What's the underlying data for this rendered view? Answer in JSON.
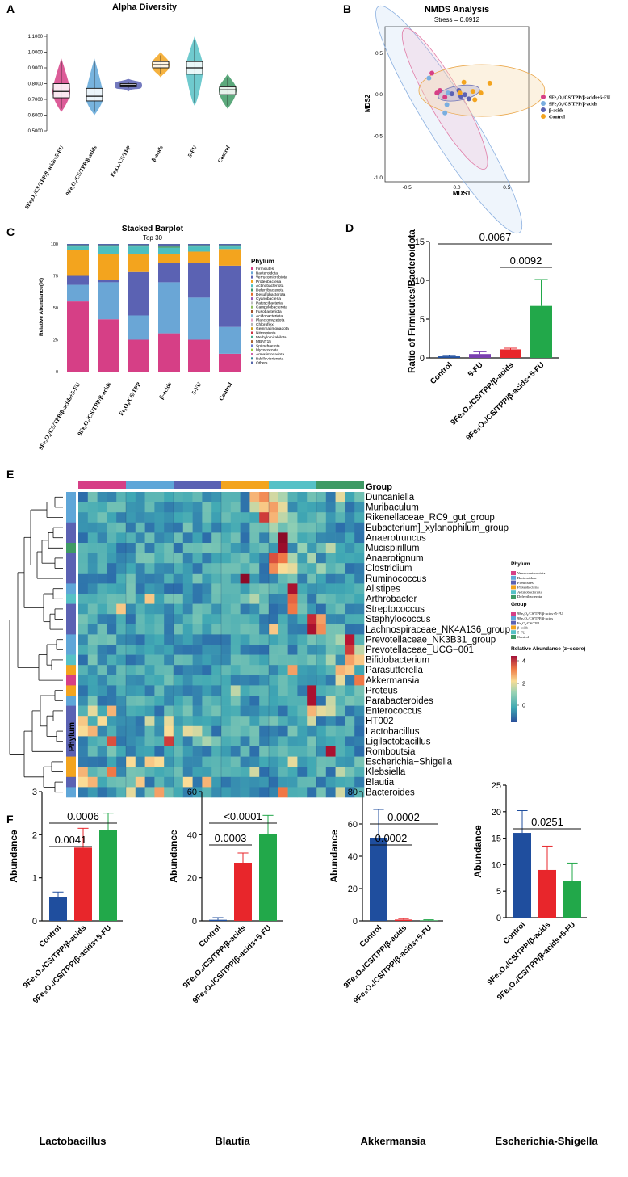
{
  "panels": {
    "A": "A",
    "B": "B",
    "C": "C",
    "D": "D",
    "E": "E",
    "F": "F"
  },
  "groups": [
    "9Fe3O4/CS/TPP/β-acids+5-FU",
    "9Fe3O4/CS/TPP/β-acids",
    "Fe3O4/CS/TPP",
    "β-acids",
    "5-FU",
    "Control"
  ],
  "colors": {
    "g1": "#d63f86",
    "g2": "#5fa6d8",
    "g3": "#5b62b3",
    "g4": "#f3a41e",
    "g5": "#56c1c6",
    "g6": "#3f9a65",
    "control_bar": "#1f4e9e",
    "red_bar": "#e8262b",
    "green_bar": "#22a84a"
  },
  "chart_data": [
    {
      "id": "A",
      "type": "violin",
      "title": "Alpha Diversity",
      "categories": [
        "9Fe₃O₄/CS/TPP/β-acids+5-FU",
        "9Fe₃O₄/CS/TPP/β-acids",
        "Fe₃O₄/CS/TPP",
        "β-acids",
        "5-FU",
        "Control"
      ],
      "yticks": [
        "0.5000",
        "0.6000",
        "0.7000",
        "0.8000",
        "0.9000",
        "1.0000",
        "1.1000"
      ],
      "ylim": [
        0.5,
        1.1
      ],
      "boxes": [
        {
          "q1": 0.71,
          "med": 0.75,
          "q3": 0.8,
          "min": 0.62,
          "max": 0.96
        },
        {
          "q1": 0.69,
          "med": 0.72,
          "q3": 0.77,
          "min": 0.6,
          "max": 0.96
        },
        {
          "q1": 0.78,
          "med": 0.79,
          "q3": 0.8,
          "min": 0.75,
          "max": 0.83
        },
        {
          "q1": 0.9,
          "med": 0.92,
          "q3": 0.94,
          "min": 0.84,
          "max": 1.0
        },
        {
          "q1": 0.86,
          "med": 0.9,
          "q3": 0.94,
          "min": 0.66,
          "max": 1.1
        },
        {
          "q1": 0.73,
          "med": 0.76,
          "q3": 0.78,
          "min": 0.64,
          "max": 0.86
        }
      ]
    },
    {
      "id": "B",
      "type": "scatter",
      "title": "NMDS Analysis",
      "subtitle": "Stress = 0.0912",
      "xlabel": "MDS1",
      "ylabel": "MDS2",
      "xticks": [
        "-0.5",
        "0.0",
        "0.5"
      ],
      "yticks": [
        "-1.0",
        "-0.5",
        "0.0",
        "0.5"
      ],
      "xlim": [
        -0.72,
        0.72
      ],
      "ylim": [
        -1.05,
        0.82
      ],
      "legend": [
        "9Fe₃O₄/CS/TPP/β-acids+5-FU",
        "9Fe₃O₄/CS/TPP/β-acids",
        "β-acids",
        "Control"
      ],
      "series": [
        {
          "name": "9Fe3O4/CS/TPP/β-acids+5-FU",
          "points": [
            [
              -0.25,
              0.26
            ],
            [
              -0.17,
              0.05
            ],
            [
              -0.12,
              -0.03
            ],
            [
              -0.2,
              0.02
            ]
          ]
        },
        {
          "name": "9Fe3O4/CS/TPP/β-acids",
          "points": [
            [
              -0.28,
              0.2
            ],
            [
              -0.1,
              -0.12
            ],
            [
              -0.12,
              -0.22
            ],
            [
              -0.09,
              0.02
            ]
          ]
        },
        {
          "name": "β-acids",
          "points": [
            [
              -0.05,
              0.01
            ],
            [
              0.02,
              0.05
            ],
            [
              0.08,
              0.0
            ],
            [
              0.12,
              -0.05
            ],
            [
              0.04,
              -0.02
            ]
          ]
        },
        {
          "name": "Control",
          "points": [
            [
              0.07,
              0.15
            ],
            [
              0.16,
              0.04
            ],
            [
              0.24,
              0.02
            ],
            [
              0.33,
              0.14
            ],
            [
              0.18,
              -0.06
            ],
            [
              0.03,
              0.02
            ]
          ]
        }
      ]
    },
    {
      "id": "C",
      "type": "stacked-bar",
      "title": "Stacked Barplot",
      "subtitle": "Top 30",
      "ylabel": "Relative Abundance(%)",
      "yticks": [
        "0",
        "25",
        "50",
        "75",
        "100"
      ],
      "categories": [
        "9Fe₃O₄/CS/TPP/β-acids+5-FU",
        "9Fe₃O₄/CS/TPP/β-acids",
        "Fe₃O₄/CS/TPP",
        "β-acids",
        "5-FU",
        "Control"
      ],
      "legend_title": "Phylum",
      "phyla": [
        "Firmicutes",
        "Bacteroidota",
        "Verrucomicrobiota",
        "Proteobacteria",
        "Actinobacteriota",
        "Deferribacterota",
        "Desulfobacterota",
        "Cyanobacteria",
        "Patescibacteria",
        "Campylobacterota",
        "Fusobacteriota",
        "Acidobacteriota",
        "Planctomycetota",
        "Chloroflexi",
        "Gemmatimonadota",
        "Nitrospirota",
        "Methylomirabilota",
        "MBNT15",
        "Spirochaetota",
        "Myxococcota",
        "Armatimonadota",
        "Bdellovibrionota",
        "Others"
      ],
      "phyla_colors": [
        "#d63f86",
        "#6aa6d6",
        "#5b62b3",
        "#f3a41e",
        "#4dbfc0",
        "#3f9a65",
        "#e36b2a",
        "#9b59b6",
        "#c0c0c0",
        "#8fbc5a",
        "#a0522d",
        "#7fb3d5",
        "#e6a0c4",
        "#b4b4b4",
        "#d4a017",
        "#cc3344",
        "#44aa88",
        "#aa6633",
        "#6677cc",
        "#99cc33",
        "#cc66aa",
        "#338899",
        "#5566aa"
      ],
      "series": [
        {
          "name": "Firmicutes",
          "values": [
            55,
            41,
            25,
            30,
            25,
            14
          ]
        },
        {
          "name": "Bacteroidota",
          "values": [
            13,
            29,
            19,
            40,
            33,
            21
          ]
        },
        {
          "name": "Verrucomicrobiota",
          "values": [
            7,
            2,
            34,
            15,
            27,
            48
          ]
        },
        {
          "name": "Proteobacteria",
          "values": [
            20,
            20,
            14,
            7,
            9,
            13
          ]
        },
        {
          "name": "Actinobacteriota",
          "values": [
            3,
            6,
            6,
            5,
            4,
            2
          ]
        },
        {
          "name": "Deferribacterota",
          "values": [
            1,
            1,
            1,
            1,
            1,
            1
          ]
        },
        {
          "name": "Others",
          "values": [
            1,
            1,
            1,
            2,
            1,
            1
          ]
        }
      ]
    },
    {
      "id": "D",
      "type": "bar",
      "ylabel": "Ratio of Firmicutes/Bacteroidota",
      "categories": [
        "Control",
        "5-FU",
        "9Fe₃O₄/CS/TPP/β-acids",
        "9Fe₃O₄/CS/TPP/β-acids+5-FU"
      ],
      "values": [
        0.2,
        0.5,
        1.1,
        6.7
      ],
      "errors": [
        0.1,
        0.3,
        0.15,
        3.4
      ],
      "ylim": [
        0,
        15
      ],
      "yticks": [
        "0",
        "5",
        "10",
        "15"
      ],
      "pvalues": [
        {
          "label": "0.0067",
          "from": 0,
          "to": 3
        },
        {
          "label": "0.0092",
          "from": 2,
          "to": 3
        }
      ]
    },
    {
      "id": "E",
      "type": "heatmap",
      "header": "Group",
      "row_label": "Phylum",
      "genera": [
        "Duncaniella",
        "Muribaculum",
        "Rikenellaceae_RC9_gut_group",
        "Eubacterium]_xylanophilum_group",
        "Anaerotruncus",
        "Mucispirillum",
        "Anaerotignum",
        "Clostridium",
        "Ruminococcus",
        "Alistipes",
        "Arthrobacter",
        "Streptococcus",
        "Staphylococcus",
        "Lachnospiraceae_NK4A136_group",
        "Prevotellaceae_NK3B31_group",
        "Prevotellaceae_UCG−001",
        "Bifidobacterium",
        "Parasutterella",
        "Akkermansia",
        "Proteus",
        "Parabacteroides",
        "Enterococcus",
        "HT002",
        "Lactobacillus",
        "Ligilactobacillus",
        "Romboutsia",
        "Escherichia−Shigella",
        "Klebsiella",
        "Blautia",
        "Bacteroides"
      ],
      "legend": {
        "phylum_title": "Phylum",
        "phyla": [
          "Verrucomicrobiota",
          "Bacteroidota",
          "Firmicutes",
          "Proteobacteria",
          "Actinobacteriota",
          "Deferribacterota"
        ],
        "group_title": "Group",
        "groups": [
          "9Fe₃O₄/CS/TPP/β-acids+5-FU",
          "9Fe₃O₄/CS/TPP/β-acids",
          "Fe₃O₄/CS/TPP",
          "β-acids",
          "5-FU",
          "Control"
        ],
        "scale_title": "Relative Abundance (z−score)",
        "scale_ticks": [
          "4",
          "2",
          "0"
        ]
      }
    },
    {
      "id": "F1",
      "type": "bar",
      "title": "Lactobacillus",
      "ylabel": "Abundance",
      "categories": [
        "Control",
        "9Fe₃O₄/CS/TPP/β-acids",
        "9Fe₃O₄/CS/TPP/β-acids+5-FU"
      ],
      "values": [
        0.55,
        1.7,
        2.1
      ],
      "errors": [
        0.12,
        0.45,
        0.4
      ],
      "ylim": [
        0,
        3
      ],
      "yticks": [
        "0",
        "1",
        "2",
        "3"
      ],
      "pvalues": [
        {
          "label": "0.0041",
          "from": 0,
          "to": 1
        },
        {
          "label": "0.0006",
          "from": 0,
          "to": 2
        }
      ]
    },
    {
      "id": "F2",
      "type": "bar",
      "title": "Blautia",
      "ylabel": "Abundance",
      "categories": [
        "Control",
        "9Fe₃O₄/CS/TPP/β-acids",
        "9Fe₃O₄/CS/TPP/β-acids+5-FU"
      ],
      "values": [
        0.5,
        27,
        40.5
      ],
      "errors": [
        1,
        4.5,
        8.5
      ],
      "ylim": [
        0,
        60
      ],
      "yticks": [
        "0",
        "20",
        "40",
        "60"
      ],
      "pvalues": [
        {
          "label": "0.0003",
          "from": 0,
          "to": 1
        },
        {
          "label": "<0.0001",
          "from": 0,
          "to": 2
        }
      ]
    },
    {
      "id": "F3",
      "type": "bar",
      "title": "Akkermansia",
      "ylabel": "Abundance",
      "categories": [
        "Control",
        "9Fe₃O₄/CS/TPP/β-acids",
        "9Fe₃O₄/CS/TPP/β-acids+5-FU"
      ],
      "values": [
        51.5,
        0.8,
        0.3
      ],
      "errors": [
        17.5,
        0.6,
        0.4
      ],
      "ylim": [
        0,
        80
      ],
      "yticks": [
        "0",
        "20",
        "40",
        "60",
        "80"
      ],
      "pvalues": [
        {
          "label": "0.0002",
          "from": 0,
          "to": 1
        },
        {
          "label": "0.0002",
          "from": 0,
          "to": 2
        }
      ]
    },
    {
      "id": "F4",
      "type": "bar",
      "title": "Escherichia-Shigella",
      "ylabel": "Abundance",
      "categories": [
        "Control",
        "9Fe₃O₄/CS/TPP/β-acids",
        "9Fe₃O₄/CS/TPP/β-acids+5-FU"
      ],
      "values": [
        16,
        9,
        7
      ],
      "errors": [
        4.2,
        4.5,
        3.3
      ],
      "ylim": [
        0,
        25
      ],
      "yticks": [
        "0",
        "5",
        "10",
        "15",
        "20",
        "25"
      ],
      "pvalues": [
        {
          "label": "0.0251",
          "from": 0,
          "to": 2
        }
      ]
    }
  ]
}
